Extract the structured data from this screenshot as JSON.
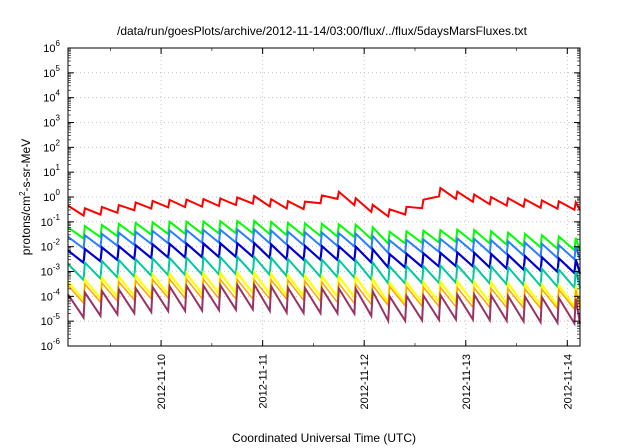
{
  "chart_data": {
    "type": "line",
    "title": "/data/run/goesPlots/archive/2012-11-14/03:00/flux/../flux/5daysMarsFluxes.txt",
    "xlabel": "Coordinated Universal Time (UTC)",
    "ylabel": {
      "base": "protons/cm",
      "sup": "2",
      "rest": "-s-sr-MeV"
    },
    "y_scale": "log",
    "ylim": [
      1e-06,
      1000000.0
    ],
    "y_ticks": [
      {
        "base": "10",
        "exp": "-6",
        "value": 1e-06
      },
      {
        "base": "10",
        "exp": "-5",
        "value": 1e-05
      },
      {
        "base": "10",
        "exp": "-4",
        "value": 0.0001
      },
      {
        "base": "10",
        "exp": "-3",
        "value": 0.001
      },
      {
        "base": "10",
        "exp": "-2",
        "value": 0.01
      },
      {
        "base": "10",
        "exp": "-1",
        "value": 0.1
      },
      {
        "base": "10",
        "exp": "0",
        "value": 1
      },
      {
        "base": "10",
        "exp": "1",
        "value": 10
      },
      {
        "base": "10",
        "exp": "2",
        "value": 100
      },
      {
        "base": "10",
        "exp": "3",
        "value": 1000
      },
      {
        "base": "10",
        "exp": "4",
        "value": 10000
      },
      {
        "base": "10",
        "exp": "5",
        "value": 100000
      },
      {
        "base": "10",
        "exp": "6",
        "value": 1000000
      }
    ],
    "x_ticks": [
      "2012-11-10",
      "2012-11-11",
      "2012-11-12",
      "2012-11-13",
      "2012-11-14"
    ],
    "xlim": [
      "2012-11-09 02:00",
      "2012-11-14 03:00"
    ],
    "grid": true,
    "sawtooth_period_hours": 4,
    "series": [
      {
        "color": "#ff0000",
        "width": 2,
        "envelope": [
          [
            "2012-11-09 02:00",
            0.45
          ],
          [
            "2012-11-09 06:00",
            0.35
          ],
          [
            "2012-11-09 12:00",
            0.42
          ],
          [
            "2012-11-09 18:00",
            0.6
          ],
          [
            "2012-11-10 00:00",
            0.75
          ],
          [
            "2012-11-10 08:00",
            0.8
          ],
          [
            "2012-11-10 16:00",
            0.9
          ],
          [
            "2012-11-10 22:00",
            1.1
          ],
          [
            "2012-11-11 04:00",
            0.7
          ],
          [
            "2012-11-11 10:00",
            0.65
          ],
          [
            "2012-11-11 17:00",
            1.8
          ],
          [
            "2012-11-11 20:00",
            1.3
          ],
          [
            "2012-11-12 00:00",
            0.6
          ],
          [
            "2012-11-12 06:00",
            0.32
          ],
          [
            "2012-11-12 12:00",
            0.45
          ],
          [
            "2012-11-12 18:00",
            2.3
          ],
          [
            "2012-11-12 23:00",
            1.5
          ],
          [
            "2012-11-13 06:00",
            1.0
          ],
          [
            "2012-11-13 14:00",
            0.8
          ],
          [
            "2012-11-13 20:00",
            0.7
          ],
          [
            "2012-11-14 03:00",
            0.6
          ]
        ],
        "dip": 0.5
      },
      {
        "color": "#00ff00",
        "width": 2,
        "envelope": [
          [
            "2012-11-09 02:00",
            0.06
          ],
          [
            "2012-11-09 12:00",
            0.08
          ],
          [
            "2012-11-10 00:00",
            0.1
          ],
          [
            "2012-11-10 22:00",
            0.11
          ],
          [
            "2012-11-11 06:00",
            0.09
          ],
          [
            "2012-11-12 00:00",
            0.075
          ],
          [
            "2012-11-12 06:00",
            0.04
          ],
          [
            "2012-11-13 00:00",
            0.05
          ],
          [
            "2012-11-14 03:00",
            0.022
          ]
        ],
        "dip": 0.32
      },
      {
        "color": "#2a7fff",
        "width": 2,
        "envelope": [
          [
            "2012-11-09 02:00",
            0.025
          ],
          [
            "2012-11-09 12:00",
            0.035
          ],
          [
            "2012-11-10 00:00",
            0.045
          ],
          [
            "2012-11-10 22:00",
            0.05
          ],
          [
            "2012-11-11 06:00",
            0.04
          ],
          [
            "2012-11-12 00:00",
            0.033
          ],
          [
            "2012-11-12 06:00",
            0.018
          ],
          [
            "2012-11-13 00:00",
            0.022
          ],
          [
            "2012-11-14 03:00",
            0.01
          ]
        ],
        "dip": 0.3
      },
      {
        "color": "#0000cd",
        "width": 2.2,
        "envelope": [
          [
            "2012-11-09 02:00",
            0.007
          ],
          [
            "2012-11-09 12:00",
            0.01
          ],
          [
            "2012-11-10 00:00",
            0.013
          ],
          [
            "2012-11-10 22:00",
            0.014
          ],
          [
            "2012-11-11 06:00",
            0.011
          ],
          [
            "2012-11-12 00:00",
            0.01
          ],
          [
            "2012-11-12 06:00",
            0.005
          ],
          [
            "2012-11-13 00:00",
            0.006
          ],
          [
            "2012-11-14 03:00",
            0.003
          ]
        ],
        "dip": 0.28
      },
      {
        "color": "#00c9a0",
        "width": 2,
        "envelope": [
          [
            "2012-11-09 02:00",
            0.002
          ],
          [
            "2012-11-09 12:00",
            0.0028
          ],
          [
            "2012-11-10 00:00",
            0.0035
          ],
          [
            "2012-11-10 22:00",
            0.004
          ],
          [
            "2012-11-11 06:00",
            0.0032
          ],
          [
            "2012-11-12 00:00",
            0.0028
          ],
          [
            "2012-11-12 06:00",
            0.0016
          ],
          [
            "2012-11-13 00:00",
            0.0018
          ],
          [
            "2012-11-14 03:00",
            0.0011
          ]
        ],
        "dip": 0.2
      },
      {
        "color": "#ffff00",
        "width": 2.2,
        "envelope": [
          [
            "2012-11-09 02:00",
            0.0004
          ],
          [
            "2012-11-09 12:00",
            0.0006
          ],
          [
            "2012-11-10 00:00",
            0.0008
          ],
          [
            "2012-11-10 22:00",
            0.0009
          ],
          [
            "2012-11-11 06:00",
            0.0007
          ],
          [
            "2012-11-12 00:00",
            0.0006
          ],
          [
            "2012-11-12 06:00",
            0.00035
          ],
          [
            "2012-11-13 00:00",
            0.0004
          ],
          [
            "2012-11-14 03:00",
            0.00025
          ]
        ],
        "dip": 0.15
      },
      {
        "color": "#ffa500",
        "width": 1.5,
        "envelope": [
          [
            "2012-11-09 02:00",
            0.00028
          ],
          [
            "2012-11-10 00:00",
            0.0005
          ],
          [
            "2012-11-11 06:00",
            0.00045
          ],
          [
            "2012-11-12 06:00",
            0.00025
          ],
          [
            "2012-11-14 03:00",
            0.00018
          ]
        ],
        "dip": 0.17
      },
      {
        "color": "#993366",
        "width": 2,
        "envelope": [
          [
            "2012-11-09 02:00",
            0.00012
          ],
          [
            "2012-11-09 12:00",
            0.00018
          ],
          [
            "2012-11-10 00:00",
            0.00025
          ],
          [
            "2012-11-10 22:00",
            0.0003
          ],
          [
            "2012-11-11 06:00",
            0.00022
          ],
          [
            "2012-11-12 00:00",
            0.0002
          ],
          [
            "2012-11-12 06:00",
            0.0001
          ],
          [
            "2012-11-13 00:00",
            0.00012
          ],
          [
            "2012-11-14 03:00",
            8e-05
          ]
        ],
        "dip": 0.1
      }
    ]
  }
}
